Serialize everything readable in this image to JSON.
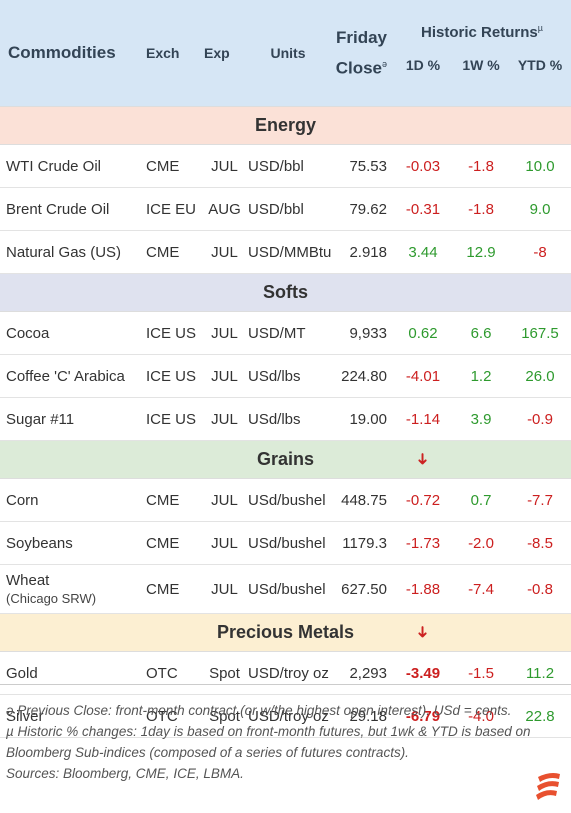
{
  "header": {
    "commodities": "Commodities",
    "exch": "Exch",
    "exp": "Exp",
    "units": "Units",
    "friday_line1": "Friday",
    "friday_line2": "Close",
    "friday_mark": "ə",
    "historic": "Historic Returns",
    "historic_mark": "µ",
    "d1": "1D %",
    "w1": "1W %",
    "ytd": "YTD %"
  },
  "sections": {
    "energy": "Energy",
    "softs": "Softs",
    "grains": "Grains",
    "metals": "Precious Metals"
  },
  "rows": [
    {
      "name": "WTI Crude Oil",
      "exch": "CME",
      "exp": "JUL",
      "units": "USD/bbl",
      "close": "75.53",
      "d1": "-0.03",
      "w1": "-1.8",
      "ytd": "10.0"
    },
    {
      "name": "Brent Crude Oil",
      "exch": "ICE EU",
      "exp": "AUG",
      "units": "USD/bbl",
      "close": "79.62",
      "d1": "-0.31",
      "w1": "-1.8",
      "ytd": "9.0"
    },
    {
      "name": "Natural Gas (US)",
      "exch": "CME",
      "exp": "JUL",
      "units": "USD/MMBtu",
      "close": "2.918",
      "d1": "3.44",
      "w1": "12.9",
      "ytd": "-8"
    },
    {
      "name": "Cocoa",
      "exch": "ICE US",
      "exp": "JUL",
      "units": "USD/MT",
      "close": "9,933",
      "d1": "0.62",
      "w1": "6.6",
      "ytd": "167.5"
    },
    {
      "name": "Coffee 'C' Arabica",
      "exch": "ICE US",
      "exp": "JUL",
      "units": "USd/lbs",
      "close": "224.80",
      "d1": "-4.01",
      "w1": "1.2",
      "ytd": "26.0"
    },
    {
      "name": "Sugar #11",
      "exch": "ICE US",
      "exp": "JUL",
      "units": "USd/lbs",
      "close": "19.00",
      "d1": "-1.14",
      "w1": "3.9",
      "ytd": "-0.9"
    },
    {
      "name": "Corn",
      "exch": "CME",
      "exp": "JUL",
      "units": "USd/bushel",
      "close": "448.75",
      "d1": "-0.72",
      "w1": "0.7",
      "ytd": "-7.7"
    },
    {
      "name": "Soybeans",
      "exch": "CME",
      "exp": "JUL",
      "units": "USd/bushel",
      "close": "1179.3",
      "d1": "-1.73",
      "w1": "-2.0",
      "ytd": "-8.5"
    },
    {
      "name": "Wheat",
      "sub": "(Chicago SRW)",
      "exch": "CME",
      "exp": "JUL",
      "units": "USd/bushel",
      "close": "627.50",
      "d1": "-1.88",
      "w1": "-7.4",
      "ytd": "-0.8"
    },
    {
      "name": "Gold",
      "exch": "OTC",
      "exp": "Spot",
      "units": "USD/troy oz",
      "close": "2,293",
      "d1": "-3.49",
      "w1": "-1.5",
      "ytd": "11.2"
    },
    {
      "name": "Silver",
      "exch": "OTC",
      "exp": "Spot",
      "units": "USD/troy oz",
      "close": "29.18",
      "d1": "-6.79",
      "w1": "-4.0",
      "ytd": "22.8"
    }
  ],
  "footnotes": {
    "line1": "ə Previous Close: front-month contract (or w/the highest open interest). USd = cents.",
    "line2": "µ Historic % changes: 1day is based on front-month futures, but 1wk & YTD is based on Bloomberg Sub-indices (composed of a series of futures contracts).",
    "line3": "Sources: Bloomberg, CME, ICE, LBMA."
  },
  "colors": {
    "negative": "#cc1f1f",
    "positive": "#2e9a2e",
    "header_bg": "#d6e6f5",
    "energy_bg": "#fbe1d7",
    "softs_bg": "#dfe2ef",
    "grains_bg": "#dcebd8",
    "metals_bg": "#fcefd2",
    "logo": "#e8502f"
  },
  "icons": {
    "section_marker": "down-right-arrow-icon",
    "brand": "brand-logo-icon"
  }
}
